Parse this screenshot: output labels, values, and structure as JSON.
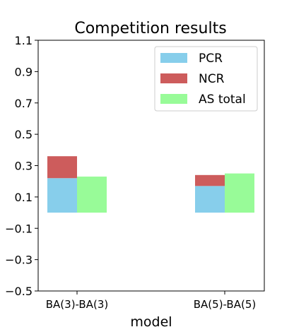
{
  "chart_data": {
    "type": "bar",
    "stacked_partial": true,
    "title": "Competition results",
    "xlabel": "model",
    "ylabel": "",
    "ylim": [
      -0.5,
      1.1
    ],
    "yticks": [
      -0.5,
      -0.3,
      -0.1,
      0.1,
      0.3,
      0.5,
      0.7,
      0.9,
      1.1
    ],
    "ytick_labels": [
      "−0.5",
      "−0.3",
      "−0.1",
      "0.1",
      "0.3",
      "0.5",
      "0.7",
      "0.9",
      "1.1"
    ],
    "categories": [
      "BA(3)-BA(3)",
      "BA(5)-BA(5)"
    ],
    "legend_position": "top-right",
    "series": [
      {
        "name": "PCR",
        "color": "#87ceeb",
        "values": [
          0.22,
          0.17
        ],
        "stack": "A",
        "base": "zero"
      },
      {
        "name": "NCR",
        "color": "#cd5c5c",
        "values": [
          0.14,
          0.07
        ],
        "stack": "A",
        "base": "PCR"
      },
      {
        "name": "AS total",
        "color": "#98fb98",
        "values": [
          0.23,
          0.25
        ],
        "stack": "B",
        "base": "zero"
      }
    ]
  }
}
